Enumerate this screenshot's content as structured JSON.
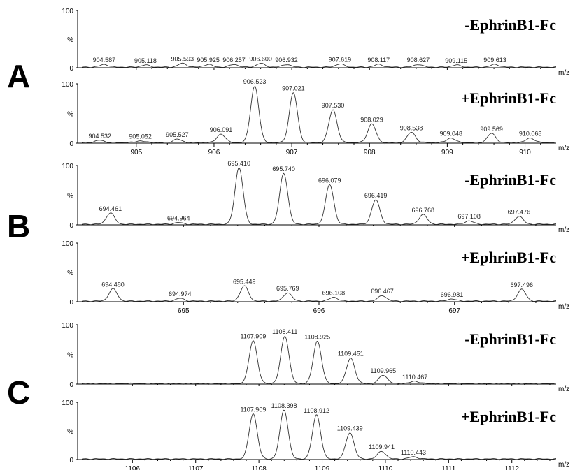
{
  "chart_data": [
    {
      "type": "line",
      "panel_letter": "A",
      "condition": "-EphrinB1-Fc",
      "x_unit": "m/z",
      "y_axis_label": "%",
      "y_ticks": [
        "100",
        "0"
      ],
      "xlim": [
        904.3,
        910.4
      ],
      "ylim": [
        0,
        100
      ],
      "x_tick_labels": [],
      "peaks": [
        {
          "mz": 904.587,
          "label": "904.587",
          "intensity": 5
        },
        {
          "mz": 905.118,
          "label": "905.118",
          "intensity": 4
        },
        {
          "mz": 905.593,
          "label": "905.593",
          "intensity": 7
        },
        {
          "mz": 905.925,
          "label": "905.925",
          "intensity": 5
        },
        {
          "mz": 906.257,
          "label": "906.257",
          "intensity": 5
        },
        {
          "mz": 906.6,
          "label": "906.600",
          "intensity": 7
        },
        {
          "mz": 906.932,
          "label": "906.932",
          "intensity": 5
        },
        {
          "mz": 907.619,
          "label": "907.619",
          "intensity": 6
        },
        {
          "mz": 908.117,
          "label": "908.117",
          "intensity": 5
        },
        {
          "mz": 908.627,
          "label": "908.627",
          "intensity": 5
        },
        {
          "mz": 909.115,
          "label": "909.115",
          "intensity": 4
        },
        {
          "mz": 909.613,
          "label": "909.613",
          "intensity": 5
        }
      ]
    },
    {
      "type": "line",
      "panel_letter": "",
      "condition": "+EphrinB1-Fc",
      "x_unit": "m/z",
      "y_axis_label": "%",
      "y_ticks": [
        "100",
        "0"
      ],
      "xlim": [
        904.3,
        910.4
      ],
      "ylim": [
        0,
        100
      ],
      "x_tick_labels": [
        "905",
        "906",
        "907",
        "908",
        "909",
        "910"
      ],
      "peaks": [
        {
          "mz": 904.532,
          "label": "904.532",
          "intensity": 4
        },
        {
          "mz": 905.052,
          "label": "905.052",
          "intensity": 3
        },
        {
          "mz": 905.527,
          "label": "905.527",
          "intensity": 6
        },
        {
          "mz": 906.091,
          "label": "906.091",
          "intensity": 15
        },
        {
          "mz": 906.523,
          "label": "906.523",
          "intensity": 100
        },
        {
          "mz": 907.021,
          "label": "907.021",
          "intensity": 88
        },
        {
          "mz": 907.53,
          "label": "907.530",
          "intensity": 58
        },
        {
          "mz": 908.029,
          "label": "908.029",
          "intensity": 33
        },
        {
          "mz": 908.538,
          "label": "908.538",
          "intensity": 18
        },
        {
          "mz": 909.048,
          "label": "909.048",
          "intensity": 8
        },
        {
          "mz": 909.569,
          "label": "909.569",
          "intensity": 16
        },
        {
          "mz": 910.068,
          "label": "910.068",
          "intensity": 8
        }
      ]
    },
    {
      "type": "line",
      "panel_letter": "B",
      "condition": "-EphrinB1-Fc",
      "x_unit": "m/z",
      "y_axis_label": "%",
      "y_ticks": [
        "100",
        "0"
      ],
      "xlim": [
        694.25,
        697.75
      ],
      "ylim": [
        0,
        100
      ],
      "x_tick_labels": [],
      "peaks": [
        {
          "mz": 694.461,
          "label": "694.461",
          "intensity": 20
        },
        {
          "mz": 694.964,
          "label": "694.964",
          "intensity": 3
        },
        {
          "mz": 695.41,
          "label": "695.410",
          "intensity": 100
        },
        {
          "mz": 695.74,
          "label": "695.740",
          "intensity": 90
        },
        {
          "mz": 696.079,
          "label": "696.079",
          "intensity": 70
        },
        {
          "mz": 696.419,
          "label": "696.419",
          "intensity": 43
        },
        {
          "mz": 696.768,
          "label": "696.768",
          "intensity": 17
        },
        {
          "mz": 697.108,
          "label": "697.108",
          "intensity": 6
        },
        {
          "mz": 697.476,
          "label": "697.476",
          "intensity": 14
        }
      ]
    },
    {
      "type": "line",
      "panel_letter": "",
      "condition": "+EphrinB1-Fc",
      "x_unit": "m/z",
      "y_axis_label": "%",
      "y_ticks": [
        "100",
        "0"
      ],
      "xlim": [
        694.25,
        697.75
      ],
      "ylim": [
        0,
        100
      ],
      "x_tick_labels": [
        "695",
        "696",
        "697"
      ],
      "peaks": [
        {
          "mz": 694.48,
          "label": "694.480",
          "intensity": 22
        },
        {
          "mz": 694.974,
          "label": "694.974",
          "intensity": 5
        },
        {
          "mz": 695.449,
          "label": "695.449",
          "intensity": 27
        },
        {
          "mz": 695.769,
          "label": "695.769",
          "intensity": 15
        },
        {
          "mz": 696.108,
          "label": "696.108",
          "intensity": 7
        },
        {
          "mz": 696.467,
          "label": "696.467",
          "intensity": 10
        },
        {
          "mz": 696.981,
          "label": "696.981",
          "intensity": 4
        },
        {
          "mz": 697.496,
          "label": "697.496",
          "intensity": 21
        }
      ]
    },
    {
      "type": "line",
      "panel_letter": "C",
      "condition": "-EphrinB1-Fc",
      "x_unit": "m/z",
      "y_axis_label": "%",
      "y_ticks": [
        "100",
        "0"
      ],
      "xlim": [
        1105.2,
        1112.7
      ],
      "ylim": [
        0,
        100
      ],
      "x_tick_labels": [],
      "peaks": [
        {
          "mz": 1107.909,
          "label": "1107.909",
          "intensity": 76
        },
        {
          "mz": 1108.411,
          "label": "1108.411",
          "intensity": 84
        },
        {
          "mz": 1108.925,
          "label": "1108.925",
          "intensity": 75
        },
        {
          "mz": 1109.451,
          "label": "1109.451",
          "intensity": 45
        },
        {
          "mz": 1109.965,
          "label": "1109.965",
          "intensity": 15
        },
        {
          "mz": 1110.467,
          "label": "1110.467",
          "intensity": 4
        }
      ]
    },
    {
      "type": "line",
      "panel_letter": "",
      "condition": "+EphrinB1-Fc",
      "x_unit": "m/z",
      "y_axis_label": "%",
      "y_ticks": [
        "100",
        "0"
      ],
      "xlim": [
        1105.2,
        1112.7
      ],
      "ylim": [
        0,
        100
      ],
      "x_tick_labels": [
        "1106",
        "1107",
        "1108",
        "1109",
        "1110",
        "1111",
        "1112"
      ],
      "peaks": [
        {
          "mz": 1107.909,
          "label": "1107.909",
          "intensity": 83
        },
        {
          "mz": 1108.398,
          "label": "1108.398",
          "intensity": 90
        },
        {
          "mz": 1108.912,
          "label": "1108.912",
          "intensity": 81
        },
        {
          "mz": 1109.439,
          "label": "1109.439",
          "intensity": 48
        },
        {
          "mz": 1109.941,
          "label": "1109.941",
          "intensity": 14
        },
        {
          "mz": 1110.443,
          "label": "1110.443",
          "intensity": 4
        }
      ]
    }
  ]
}
